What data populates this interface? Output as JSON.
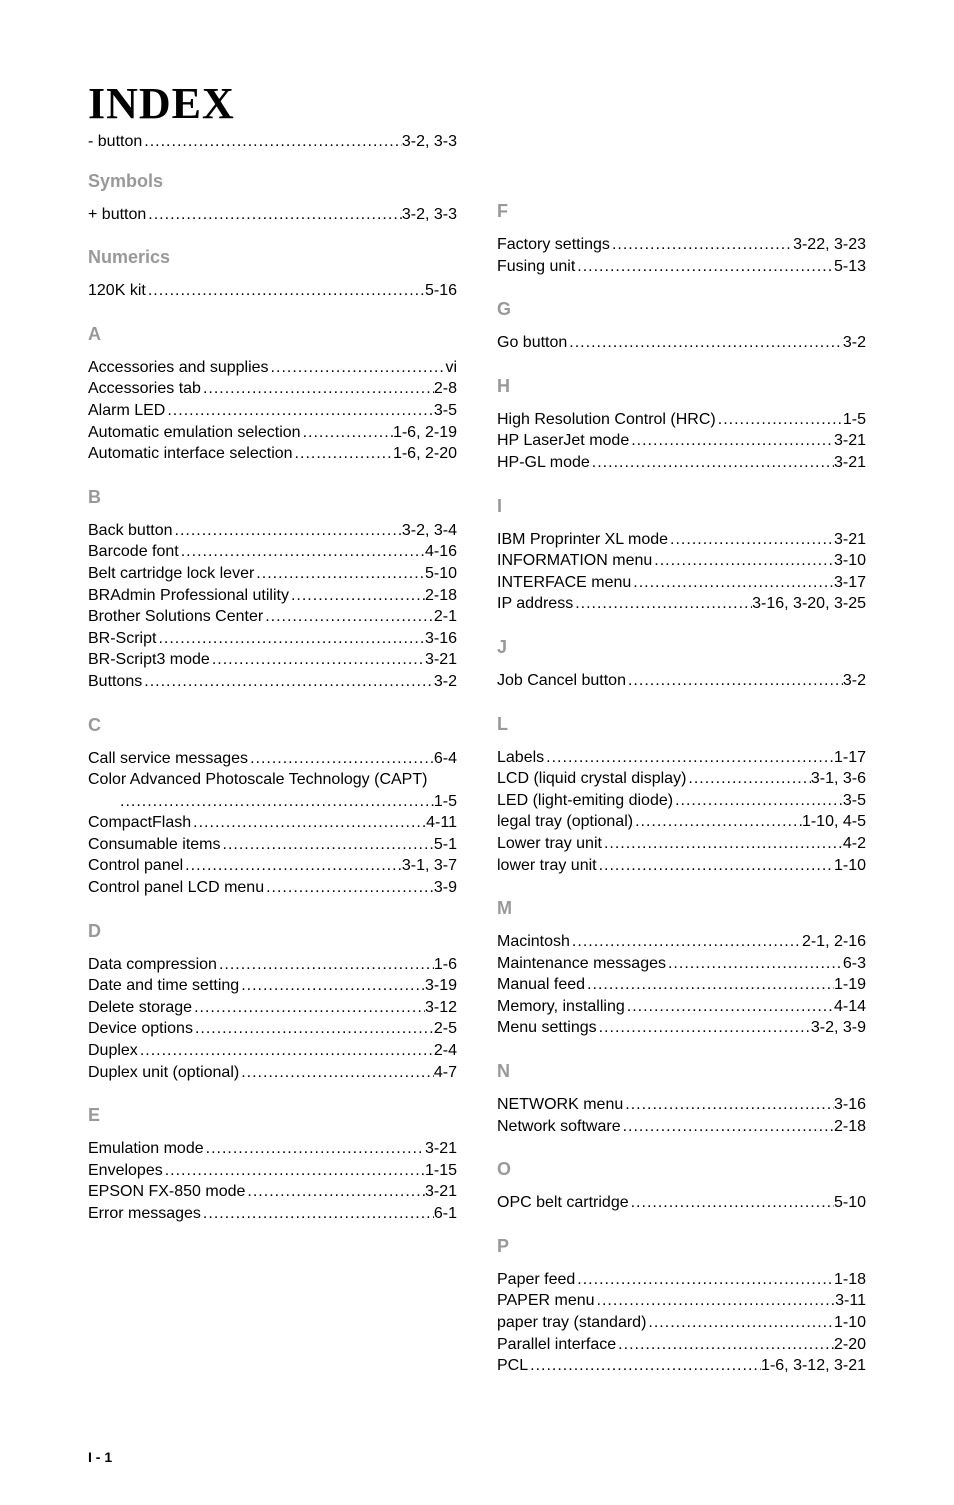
{
  "title": "INDEX",
  "footer": "I - 1",
  "leftColumn": [
    {
      "head": null,
      "entries": [
        {
          "label": "- button",
          "pages": "3-2, 3-3"
        }
      ]
    },
    {
      "head": "Symbols",
      "entries": [
        {
          "label": "+ button",
          "pages": "3-2, 3-3"
        }
      ]
    },
    {
      "head": "Numerics",
      "entries": [
        {
          "label": "120K kit",
          "pages": "5-16"
        }
      ]
    },
    {
      "head": "A",
      "entries": [
        {
          "label": "Accessories and supplies",
          "pages": " vi"
        },
        {
          "label": "Accessories tab",
          "pages": "2-8"
        },
        {
          "label": "Alarm LED",
          "pages": "3-5"
        },
        {
          "label": "Automatic emulation selection",
          "pages": "1-6, 2-19"
        },
        {
          "label": "Automatic interface selection",
          "pages": "1-6, 2-20"
        }
      ]
    },
    {
      "head": "B",
      "entries": [
        {
          "label": "Back button",
          "pages": "3-2, 3-4"
        },
        {
          "label": "Barcode font",
          "pages": "4-16"
        },
        {
          "label": "Belt cartridge lock lever",
          "pages": "5-10"
        },
        {
          "label": "BRAdmin Professional utility",
          "pages": "2-18"
        },
        {
          "label": "Brother Solutions Center",
          "pages": "2-1"
        },
        {
          "label": "BR-Script",
          "pages": "3-16"
        },
        {
          "label": "BR-Script3 mode",
          "pages": "3-21"
        },
        {
          "label": "Buttons",
          "pages": "3-2"
        }
      ]
    },
    {
      "head": "C",
      "entries": [
        {
          "label": "Call service messages",
          "pages": "6-4"
        },
        {
          "label": "Color Advanced Photoscale Technology (CAPT)",
          "nodots": true
        },
        {
          "label": "",
          "pages": "1-5",
          "indent": true
        },
        {
          "label": "CompactFlash",
          "pages": "4-11"
        },
        {
          "label": "Consumable items",
          "pages": "5-1"
        },
        {
          "label": "Control panel",
          "pages": "3-1, 3-7"
        },
        {
          "label": "Control panel LCD menu",
          "pages": "3-9"
        }
      ]
    },
    {
      "head": "D",
      "entries": [
        {
          "label": "Data compression",
          "pages": "1-6"
        },
        {
          "label": "Date and time setting",
          "pages": "3-19"
        },
        {
          "label": "Delete storage",
          "pages": "3-12"
        },
        {
          "label": "Device options",
          "pages": "2-5"
        },
        {
          "label": "Duplex",
          "pages": "2-4"
        },
        {
          "label": "Duplex unit (optional)",
          "pages": "4-7"
        }
      ]
    },
    {
      "head": "E",
      "entries": [
        {
          "label": "Emulation mode",
          "pages": "3-21"
        },
        {
          "label": "Envelopes",
          "pages": "1-15"
        },
        {
          "label": "EPSON FX-850 mode",
          "pages": "3-21"
        },
        {
          "label": "Error messages",
          "pages": "6-1"
        }
      ]
    }
  ],
  "rightColumn": [
    {
      "head": "F",
      "entries": [
        {
          "label": "Factory settings",
          "pages": "3-22, 3-23"
        },
        {
          "label": "Fusing unit",
          "pages": "5-13"
        }
      ]
    },
    {
      "head": "G",
      "entries": [
        {
          "label": "Go button",
          "pages": "3-2"
        }
      ]
    },
    {
      "head": "H",
      "entries": [
        {
          "label": "High Resolution Control (HRC)",
          "pages": "1-5"
        },
        {
          "label": "HP LaserJet mode",
          "pages": "3-21"
        },
        {
          "label": "HP-GL mode",
          "pages": "3-21"
        }
      ]
    },
    {
      "head": "I",
      "entries": [
        {
          "label": "IBM Proprinter XL mode",
          "pages": "3-21"
        },
        {
          "label": "INFORMATION menu",
          "pages": "3-10"
        },
        {
          "label": "INTERFACE menu",
          "pages": "3-17"
        },
        {
          "label": "IP address",
          "pages": " 3-16, 3-20, 3-25"
        }
      ]
    },
    {
      "head": "J",
      "entries": [
        {
          "label": "Job Cancel button",
          "pages": "3-2"
        }
      ]
    },
    {
      "head": "L",
      "entries": [
        {
          "label": "Labels",
          "pages": "1-17"
        },
        {
          "label": "LCD (liquid crystal display)",
          "pages": "3-1, 3-6"
        },
        {
          "label": "LED (light-emiting diode)",
          "pages": "3-5"
        },
        {
          "label": "legal tray (optional)",
          "pages": "1-10, 4-5"
        },
        {
          "label": "Lower tray unit",
          "pages": "4-2"
        },
        {
          "label": "lower tray unit",
          "pages": "1-10"
        }
      ]
    },
    {
      "head": "M",
      "entries": [
        {
          "label": "Macintosh",
          "pages": "2-1, 2-16"
        },
        {
          "label": "Maintenance messages",
          "pages": "6-3"
        },
        {
          "label": "Manual feed",
          "pages": "1-19"
        },
        {
          "label": "Memory, installing",
          "pages": "4-14"
        },
        {
          "label": "Menu settings",
          "pages": "3-2, 3-9"
        }
      ]
    },
    {
      "head": "N",
      "entries": [
        {
          "label": "NETWORK menu",
          "pages": "3-16"
        },
        {
          "label": "Network software",
          "pages": "2-18"
        }
      ]
    },
    {
      "head": "O",
      "entries": [
        {
          "label": "OPC belt cartridge",
          "pages": "5-10"
        }
      ]
    },
    {
      "head": "P",
      "entries": [
        {
          "label": "Paper feed",
          "pages": "1-18"
        },
        {
          "label": "PAPER menu",
          "pages": "3-11"
        },
        {
          "label": "paper tray (standard)",
          "pages": "1-10"
        },
        {
          "label": "Parallel interface",
          "pages": "2-20"
        },
        {
          "label": "PCL",
          "pages": " 1-6, 3-12, 3-21"
        }
      ]
    }
  ]
}
